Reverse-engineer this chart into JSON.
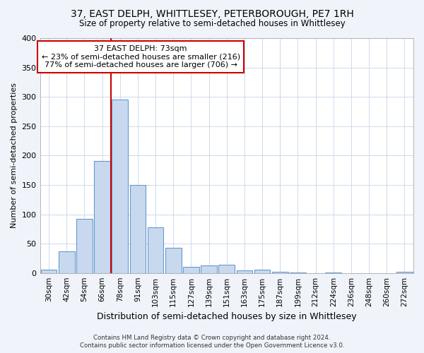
{
  "title": "37, EAST DELPH, WHITTLESEY, PETERBOROUGH, PE7 1RH",
  "subtitle": "Size of property relative to semi-detached houses in Whittlesey",
  "xlabel": "Distribution of semi-detached houses by size in Whittlesey",
  "ylabel": "Number of semi-detached properties",
  "bin_labels": [
    "30sqm",
    "42sqm",
    "54sqm",
    "66sqm",
    "78sqm",
    "91sqm",
    "103sqm",
    "115sqm",
    "127sqm",
    "139sqm",
    "151sqm",
    "163sqm",
    "175sqm",
    "187sqm",
    "199sqm",
    "212sqm",
    "224sqm",
    "236sqm",
    "248sqm",
    "260sqm",
    "272sqm"
  ],
  "bar_values": [
    6,
    37,
    92,
    191,
    295,
    150,
    78,
    43,
    11,
    13,
    14,
    5,
    6,
    2,
    1,
    0,
    1,
    0,
    0,
    0,
    2
  ],
  "bar_color": "#c8d9ef",
  "bar_edgecolor": "#6699cc",
  "vline_x": 3.5,
  "annotation_title": "37 EAST DELPH: 73sqm",
  "annotation_line1": "← 23% of semi-detached houses are smaller (216)",
  "annotation_line2": "77% of semi-detached houses are larger (706) →",
  "annotation_box_facecolor": "#ffffff",
  "annotation_box_edgecolor": "#cc0000",
  "vline_color": "#cc0000",
  "grid_color": "#c8d4e8",
  "plot_bg_color": "#ffffff",
  "fig_bg_color": "#f0f4fa",
  "footer1": "Contains HM Land Registry data © Crown copyright and database right 2024.",
  "footer2": "Contains public sector information licensed under the Open Government Licence v3.0.",
  "ylim": [
    0,
    400
  ],
  "yticks": [
    0,
    50,
    100,
    150,
    200,
    250,
    300,
    350,
    400
  ]
}
